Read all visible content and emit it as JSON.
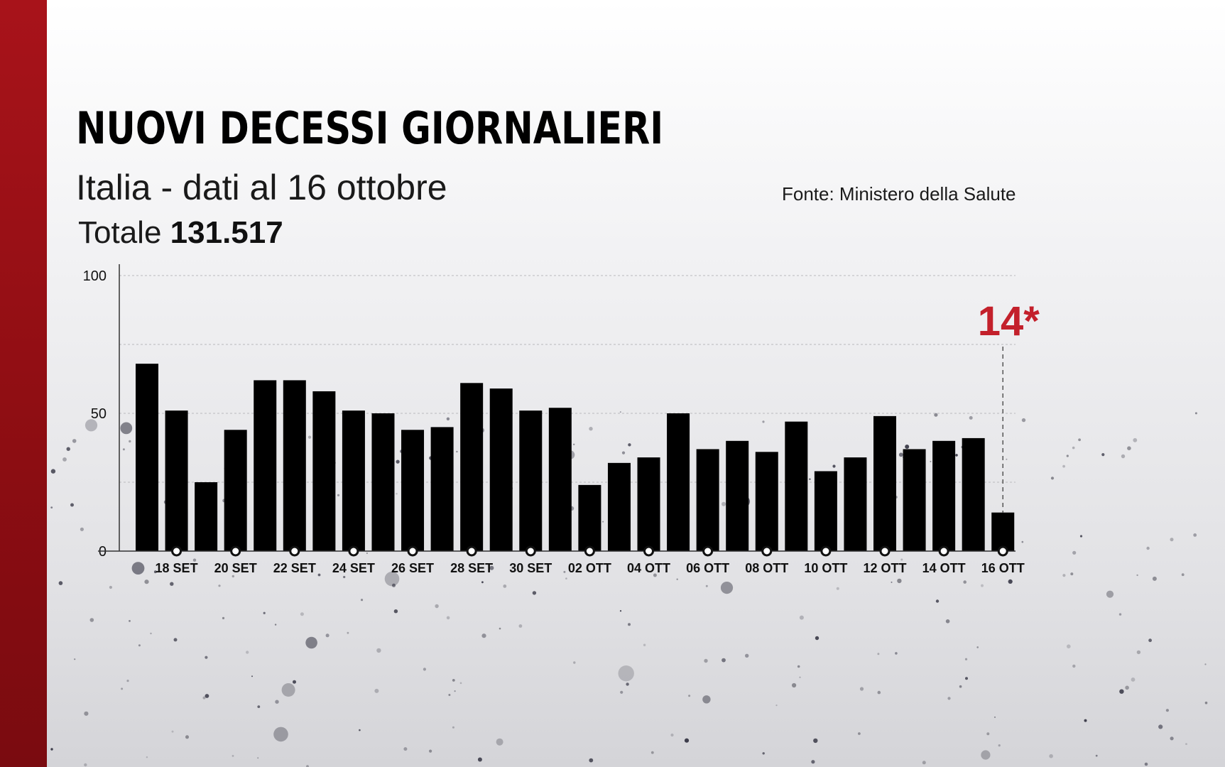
{
  "colors": {
    "accent": "#c3202b",
    "brand_bar": "#9e1118",
    "bars": "#000000"
  },
  "header": {
    "title": "NUOVI DECESSI GIORNALIERI",
    "subtitle": "Italia - dati al 16 ottobre",
    "total_label": "Totale",
    "total_value": "131.517",
    "source": "Fonte: Ministero della Salute"
  },
  "chart_data": {
    "type": "bar",
    "title": "NUOVI DECESSI GIORNALIERI",
    "xlabel": "",
    "ylabel": "",
    "ylim": [
      0,
      100
    ],
    "yticks": [
      0,
      50,
      100
    ],
    "grid": true,
    "categories": [
      "17 SET",
      "18 SET",
      "19 SET",
      "20 SET",
      "21 SET",
      "22 SET",
      "23 SET",
      "24 SET",
      "25 SET",
      "26 SET",
      "27 SET",
      "28 SET",
      "29 SET",
      "30 SET",
      "01 OTT",
      "02 OTT",
      "03 OTT",
      "04 OTT",
      "05 OTT",
      "06 OTT",
      "07 OTT",
      "08 OTT",
      "09 OTT",
      "10 OTT",
      "11 OTT",
      "12 OTT",
      "13 OTT",
      "14 OTT",
      "15 OTT",
      "16 OTT"
    ],
    "tick_labels": [
      "18 SET",
      "20 SET",
      "22 SET",
      "24 SET",
      "26 SET",
      "28 SET",
      "30 SET",
      "02 OTT",
      "04 OTT",
      "06 OTT",
      "08 OTT",
      "10 OTT",
      "12 OTT",
      "14 OTT",
      "16 OTT"
    ],
    "values": [
      68,
      51,
      25,
      44,
      62,
      62,
      58,
      51,
      50,
      44,
      45,
      61,
      59,
      51,
      52,
      24,
      32,
      34,
      50,
      37,
      40,
      36,
      47,
      29,
      34,
      49,
      37,
      40,
      41,
      14
    ],
    "annotation": {
      "category": "16 OTT",
      "text": "14*"
    }
  }
}
